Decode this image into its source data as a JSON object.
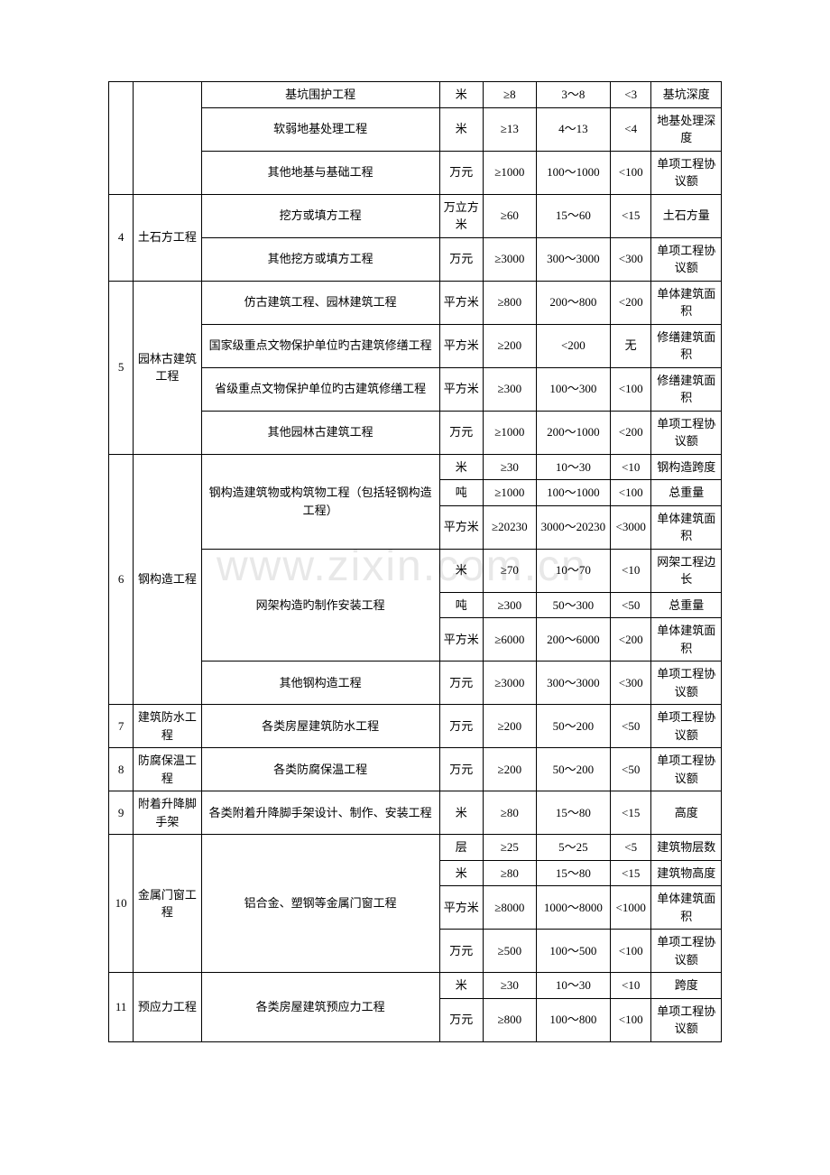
{
  "watermark": "www.zixin.com.cn",
  "rows": [
    {
      "idx": "",
      "cat": "",
      "item": "基坑围护工程",
      "unit": "米",
      "a": "≥8",
      "b": "3～8",
      "c": "<3",
      "note": "基坑深度"
    },
    {
      "idx": "",
      "cat": "",
      "item": "软弱地基处理工程",
      "unit": "米",
      "a": "≥13",
      "b": "4～13",
      "c": "<4",
      "note": "地基处理深度"
    },
    {
      "idx": "",
      "cat": "",
      "item": "其他地基与基础工程",
      "unit": "万元",
      "a": "≥1000",
      "b": "100～1000",
      "c": "<100",
      "note": "单项工程协议额"
    },
    {
      "idx": "4",
      "cat": "土石方工程",
      "item": "挖方或填方工程",
      "unit": "万立方米",
      "a": "≥60",
      "b": "15～60",
      "c": "<15",
      "note": "土石方量"
    },
    {
      "idx": "",
      "cat": "",
      "item": "其他挖方或填方工程",
      "unit": "万元",
      "a": "≥3000",
      "b": "300～3000",
      "c": "<300",
      "note": "单项工程协议额"
    },
    {
      "idx": "5",
      "cat": "园林古建筑工程",
      "item": "仿古建筑工程、园林建筑工程",
      "unit": "平方米",
      "a": "≥800",
      "b": "200～800",
      "c": "<200",
      "note": "单体建筑面积"
    },
    {
      "idx": "",
      "cat": "",
      "item": "国家级重点文物保护单位旳古建筑修缮工程",
      "unit": "平方米",
      "a": "≥200",
      "b": "<200",
      "c": "无",
      "note": "修缮建筑面积"
    },
    {
      "idx": "",
      "cat": "",
      "item": "省级重点文物保护单位旳古建筑修缮工程",
      "unit": "平方米",
      "a": "≥300",
      "b": "100～300",
      "c": "<100",
      "note": "修缮建筑面积"
    },
    {
      "idx": "",
      "cat": "",
      "item": "其他园林古建筑工程",
      "unit": "万元",
      "a": "≥1000",
      "b": "200～1000",
      "c": "<200",
      "note": "单项工程协议额"
    },
    {
      "idx": "6",
      "cat": "钢构造工程",
      "item": "钢构造建筑物或构筑物工程（包括轻钢构造工程）",
      "unit": "米",
      "a": "≥30",
      "b": "10～30",
      "c": "<10",
      "note": "钢构造跨度"
    },
    {
      "idx": "",
      "cat": "",
      "item": "",
      "unit": "吨",
      "a": "≥1000",
      "b": "100～1000",
      "c": "<100",
      "note": "总重量"
    },
    {
      "idx": "",
      "cat": "",
      "item": "",
      "unit": "平方米",
      "a": "≥20230",
      "b": "3000～20230",
      "c": "<3000",
      "note": "单体建筑面积"
    },
    {
      "idx": "",
      "cat": "",
      "item": "网架构造旳制作安装工程",
      "unit": "米",
      "a": "≥70",
      "b": "10～70",
      "c": "<10",
      "note": "网架工程边长"
    },
    {
      "idx": "",
      "cat": "",
      "item": "",
      "unit": "吨",
      "a": "≥300",
      "b": "50～300",
      "c": "<50",
      "note": "总重量"
    },
    {
      "idx": "",
      "cat": "",
      "item": "",
      "unit": "平方米",
      "a": "≥6000",
      "b": "200～6000",
      "c": "<200",
      "note": "单体建筑面积"
    },
    {
      "idx": "",
      "cat": "",
      "item": "其他钢构造工程",
      "unit": "万元",
      "a": "≥3000",
      "b": "300～3000",
      "c": "<300",
      "note": "单项工程协议额"
    },
    {
      "idx": "7",
      "cat": "建筑防水工程",
      "item": "各类房屋建筑防水工程",
      "unit": "万元",
      "a": "≥200",
      "b": "50～200",
      "c": "<50",
      "note": "单项工程协议额"
    },
    {
      "idx": "8",
      "cat": "防腐保温工程",
      "item": "各类防腐保温工程",
      "unit": "万元",
      "a": "≥200",
      "b": "50～200",
      "c": "<50",
      "note": "单项工程协议额"
    },
    {
      "idx": "9",
      "cat": "附着升降脚手架",
      "item": "各类附着升降脚手架设计、制作、安装工程",
      "unit": "米",
      "a": "≥80",
      "b": "15～80",
      "c": "<15",
      "note": "高度"
    },
    {
      "idx": "10",
      "cat": "金属门窗工程",
      "item": "铝合金、塑钢等金属门窗工程",
      "unit": "层",
      "a": "≥25",
      "b": "5～25",
      "c": "<5",
      "note": "建筑物层数"
    },
    {
      "idx": "",
      "cat": "",
      "item": "",
      "unit": "米",
      "a": "≥80",
      "b": "15～80",
      "c": "<15",
      "note": "建筑物高度"
    },
    {
      "idx": "",
      "cat": "",
      "item": "",
      "unit": "平方米",
      "a": "≥8000",
      "b": "1000～8000",
      "c": "<1000",
      "note": "单体建筑面积"
    },
    {
      "idx": "",
      "cat": "",
      "item": "",
      "unit": "万元",
      "a": "≥500",
      "b": "100～500",
      "c": "<100",
      "note": "单项工程协议额"
    },
    {
      "idx": "11",
      "cat": "预应力工程",
      "item": "各类房屋建筑预应力工程",
      "unit": "米",
      "a": "≥30",
      "b": "10～30",
      "c": "<10",
      "note": "跨度"
    },
    {
      "idx": "",
      "cat": "",
      "item": "",
      "unit": "万元",
      "a": "≥800",
      "b": "100～800",
      "c": "<100",
      "note": "单项工程协议额"
    }
  ]
}
